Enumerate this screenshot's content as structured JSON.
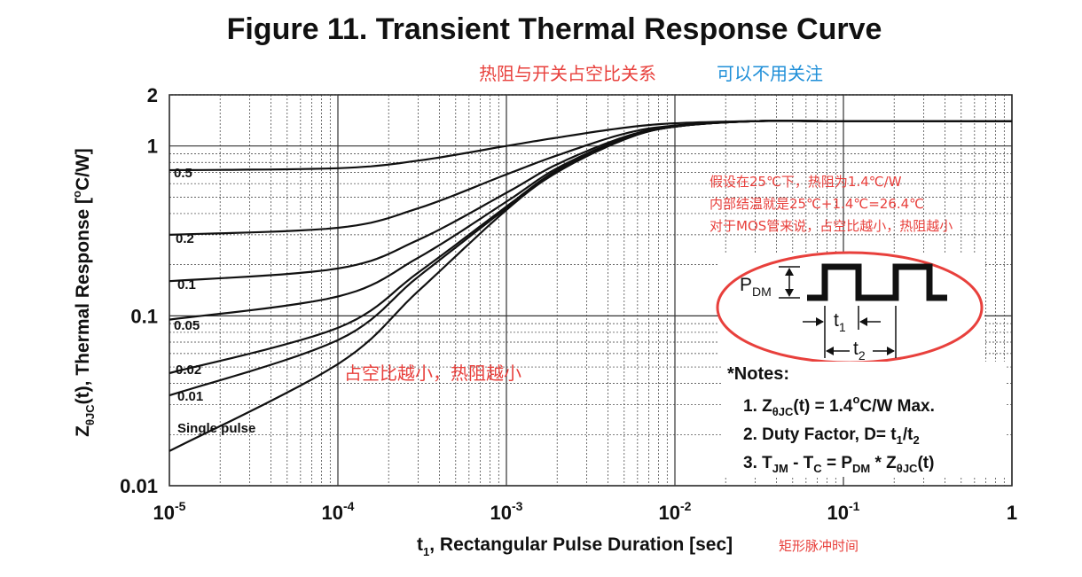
{
  "chart_data": {
    "type": "line",
    "title": "Figure 11. Transient Thermal Response Curve",
    "xlabel_main": "t",
    "xlabel_sub": "1",
    "xlabel_rest": ", Rectangular Pulse Duration [sec]",
    "xlabel_cn": "矩形脉冲时间",
    "ylabel_z": "Z",
    "ylabel_sub": "θJC",
    "ylabel_mid": "(t), Thermal Response [",
    "ylabel_sup": "o",
    "ylabel_end": "C/W]",
    "x_scale": "log",
    "y_scale": "log",
    "xlim": [
      1e-05,
      1
    ],
    "ylim": [
      0.01,
      2
    ],
    "grid": true,
    "x_ticks": [
      {
        "value": 1e-05,
        "base": "10",
        "exp": "-5"
      },
      {
        "value": 0.0001,
        "base": "10",
        "exp": "-4"
      },
      {
        "value": 0.001,
        "base": "10",
        "exp": "-3"
      },
      {
        "value": 0.01,
        "base": "10",
        "exp": "-2"
      },
      {
        "value": 0.1,
        "base": "10",
        "exp": "-1"
      },
      {
        "value": 1,
        "base": "1",
        "exp": ""
      }
    ],
    "y_ticks": [
      {
        "value": 2,
        "label": "2"
      },
      {
        "value": 1,
        "label": "1"
      },
      {
        "value": 0.1,
        "label": "0.1"
      },
      {
        "value": 0.01,
        "label": "0.01"
      }
    ],
    "series": [
      {
        "name": "0.5",
        "x": [
          1e-05,
          0.0001,
          0.0003,
          0.001,
          0.002,
          0.005,
          0.01,
          0.03,
          0.1,
          1
        ],
        "y": [
          0.72,
          0.74,
          0.82,
          1.0,
          1.12,
          1.28,
          1.36,
          1.4,
          1.4,
          1.4
        ]
      },
      {
        "name": "0.2",
        "x": [
          1e-05,
          0.0001,
          0.0003,
          0.001,
          0.002,
          0.005,
          0.01,
          0.03,
          0.1,
          1
        ],
        "y": [
          0.3,
          0.33,
          0.43,
          0.68,
          0.88,
          1.18,
          1.32,
          1.4,
          1.4,
          1.4
        ]
      },
      {
        "name": "0.1",
        "x": [
          1e-05,
          0.0001,
          0.0003,
          0.001,
          0.002,
          0.005,
          0.01,
          0.03,
          0.1,
          1
        ],
        "y": [
          0.16,
          0.19,
          0.28,
          0.53,
          0.78,
          1.13,
          1.31,
          1.4,
          1.4,
          1.4
        ]
      },
      {
        "name": "0.05",
        "x": [
          1e-05,
          0.0001,
          0.0003,
          0.001,
          0.002,
          0.005,
          0.01,
          0.03,
          0.1,
          1
        ],
        "y": [
          0.095,
          0.13,
          0.22,
          0.47,
          0.74,
          1.11,
          1.3,
          1.4,
          1.4,
          1.4
        ]
      },
      {
        "name": "0.02",
        "x": [
          1e-05,
          0.0001,
          0.0003,
          0.001,
          0.002,
          0.005,
          0.01,
          0.03,
          0.1,
          1
        ],
        "y": [
          0.046,
          0.085,
          0.18,
          0.44,
          0.72,
          1.1,
          1.3,
          1.4,
          1.4,
          1.4
        ]
      },
      {
        "name": "0.01",
        "x": [
          1e-05,
          0.0001,
          0.0003,
          0.001,
          0.002,
          0.005,
          0.01,
          0.03,
          0.1,
          1
        ],
        "y": [
          0.034,
          0.072,
          0.17,
          0.43,
          0.71,
          1.1,
          1.3,
          1.4,
          1.4,
          1.4
        ]
      },
      {
        "name": "Single pulse",
        "x": [
          1e-05,
          0.0001,
          0.0003,
          0.001,
          0.002,
          0.005,
          0.01,
          0.03,
          0.1,
          1
        ],
        "y": [
          0.016,
          0.052,
          0.14,
          0.42,
          0.7,
          1.09,
          1.3,
          1.4,
          1.4,
          1.4
        ]
      }
    ],
    "annotations": {
      "top_red": "热阻与开关占空比关系",
      "top_blue": "可以不用关注",
      "example": [
        "假设在25℃下，热阻为1.4℃/W",
        "内部结温就是25℃+1.4℃=26.4℃",
        "对于MOS管来说，占空比越小，热阻越小"
      ],
      "middle_red": "占空比越小，热阻越小"
    },
    "notes": {
      "heading": "*Notes:",
      "n1": {
        "a": "1. Z",
        "sub": "θJC",
        "b": "(t) = 1.4",
        "sup": "o",
        "c": "C/W Max."
      },
      "n2": {
        "a": "2. Duty Factor, D= t",
        "sub1": "1",
        "b": "/t",
        "sub2": "2"
      },
      "n3": {
        "a": "3. T",
        "sub1": "JM",
        "b": " - T",
        "sub2": "C",
        "c": " = P",
        "sub3": "DM",
        "d": " * Z",
        "sub4": "θJC",
        "e": "(t)"
      }
    },
    "pulse_diagram": {
      "p": "P",
      "p_sub": "DM",
      "t1": "t",
      "t1_sub": "1",
      "t2": "t",
      "t2_sub": "2"
    },
    "colors": {
      "curve": "#111111",
      "grid": "#333333",
      "annotation_red": "#e8403c",
      "annotation_blue": "#1f8fd8"
    }
  }
}
